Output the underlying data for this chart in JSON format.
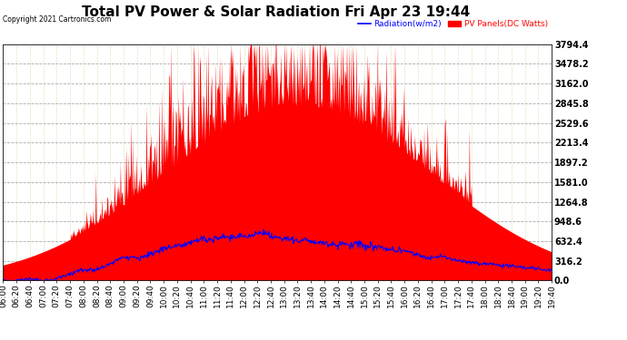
{
  "title": "Total PV Power & Solar Radiation Fri Apr 23 19:44",
  "copyright_text": "Copyright 2021 Cartronics.com",
  "legend_radiation": "Radiation(w/m2)",
  "legend_pv": "PV Panels(DC Watts)",
  "ylabel_right_values": [
    3794.4,
    3478.2,
    3162.0,
    2845.8,
    2529.6,
    2213.4,
    1897.2,
    1581.0,
    1264.8,
    948.6,
    632.4,
    316.2,
    0.0
  ],
  "ymax": 3794.4,
  "ymin": 0.0,
  "background_color": "#ffffff",
  "plot_background": "#ffffff",
  "grid_color_h": "#aaaaaa",
  "grid_color_v": "#cccc88",
  "radiation_color": "#0000ff",
  "pv_color": "#ff0000",
  "pv_fill_color": "#ff0000",
  "title_fontsize": 11,
  "axis_fontsize": 6.5,
  "x_tick_labels": [
    "06:00",
    "06:20",
    "06:40",
    "07:00",
    "07:20",
    "07:40",
    "08:00",
    "08:20",
    "08:40",
    "09:00",
    "09:20",
    "09:40",
    "10:00",
    "10:20",
    "10:40",
    "11:00",
    "11:20",
    "11:40",
    "12:00",
    "12:20",
    "12:40",
    "13:00",
    "13:20",
    "13:40",
    "14:00",
    "14:20",
    "14:40",
    "15:00",
    "15:20",
    "15:40",
    "16:00",
    "16:20",
    "16:40",
    "17:00",
    "17:20",
    "17:40",
    "18:00",
    "18:20",
    "18:40",
    "19:00",
    "19:20",
    "19:40"
  ],
  "n_points_per_interval": 20
}
